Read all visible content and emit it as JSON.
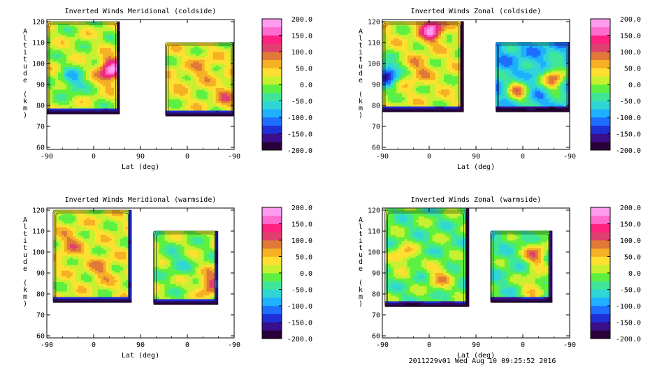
{
  "footer": "2011229v01 Wed Aug 10 09:25:52 2016",
  "colors": {
    "colorbar": [
      "#2a003a",
      "#3a0f8a",
      "#1f2fd6",
      "#1f6fff",
      "#1fb0ff",
      "#30d6d6",
      "#3fe69a",
      "#5ef040",
      "#c6f030",
      "#ffe030",
      "#f6b024",
      "#e07838",
      "#e04070",
      "#ff2080",
      "#ff6cd0",
      "#ff9cf0"
    ]
  },
  "chart_data": [
    {
      "type": "contour",
      "title": "Inverted Winds Meridional (coldside)",
      "xlabel": "Lat (deg)",
      "ylabel": "Altitude (km)",
      "xticklabels": [
        "-90",
        "0",
        "90",
        "0",
        "-90"
      ],
      "yticks": [
        60,
        70,
        80,
        90,
        100,
        110,
        120
      ],
      "ylim": [
        59,
        121
      ],
      "colorbar": {
        "min": -200,
        "max": 200,
        "ticks": [
          "200.0",
          "150.0",
          "100.0",
          "50.0",
          "0.0",
          "-50.0",
          "-100.0",
          "-150.0",
          "-200.0"
        ]
      },
      "data_regions": [
        {
          "x0": -90,
          "x1": 48,
          "ybot": 76,
          "ytop": 120,
          "base": 10
        },
        {
          "x0": 138,
          "x1": 270,
          "ybot": 75,
          "ytop": 110,
          "base": 20
        }
      ],
      "features": [
        {
          "x": 32,
          "y": 97,
          "value": 190
        },
        {
          "x": -40,
          "y": 92,
          "value": -80
        },
        {
          "x": 210,
          "y": 98,
          "value": 70
        },
        {
          "x": 255,
          "y": 85,
          "value": 80
        },
        {
          "x": 165,
          "y": 92,
          "value": 40
        }
      ]
    },
    {
      "type": "contour",
      "title": "Inverted Winds Zonal (coldside)",
      "xlabel": "Lat (deg)",
      "ylabel": "Altitude (km)",
      "xticklabels": [
        "-90",
        "0",
        "90",
        "0",
        "-90"
      ],
      "yticks": [
        60,
        70,
        80,
        90,
        100,
        110,
        120
      ],
      "ylim": [
        59,
        121
      ],
      "colorbar": {
        "min": -200,
        "max": 200,
        "ticks": [
          "200.0",
          "150.0",
          "100.0",
          "50.0",
          "0.0",
          "-50.0",
          "-100.0",
          "-150.0",
          "-200.0"
        ]
      },
      "data_regions": [
        {
          "x0": -90,
          "x1": 62,
          "ybot": 77,
          "ytop": 120,
          "base": 20
        },
        {
          "x0": 128,
          "x1": 270,
          "ybot": 77,
          "ytop": 110,
          "base": -80
        }
      ],
      "features": [
        {
          "x": 5,
          "y": 117,
          "value": 180
        },
        {
          "x": -80,
          "y": 95,
          "value": -160
        },
        {
          "x": -20,
          "y": 97,
          "value": 70
        },
        {
          "x": 240,
          "y": 93,
          "value": 90
        },
        {
          "x": 170,
          "y": 87,
          "value": 60
        }
      ]
    },
    {
      "type": "contour",
      "title": "Inverted Winds Meridional (warmside)",
      "xlabel": "Lat (deg)",
      "ylabel": "Altitude (km)",
      "xticklabels": [
        "-90",
        "0",
        "90",
        "0",
        "-90"
      ],
      "yticks": [
        60,
        70,
        80,
        90,
        100,
        110,
        120
      ],
      "ylim": [
        59,
        121
      ],
      "colorbar": {
        "min": -200,
        "max": 200,
        "ticks": [
          "200.0",
          "150.0",
          "100.0",
          "50.0",
          "0.0",
          "-50.0",
          "-100.0",
          "-150.0",
          "-200.0"
        ]
      },
      "data_regions": [
        {
          "x0": -78,
          "x1": 72,
          "ybot": 76,
          "ytop": 120,
          "base": 20
        },
        {
          "x0": 115,
          "x1": 238,
          "ybot": 75,
          "ytop": 110,
          "base": 0
        }
      ],
      "features": [
        {
          "x": -45,
          "y": 104,
          "value": 80
        },
        {
          "x": 15,
          "y": 92,
          "value": 70
        },
        {
          "x": 225,
          "y": 85,
          "value": 120
        },
        {
          "x": 160,
          "y": 95,
          "value": -40
        }
      ]
    },
    {
      "type": "contour",
      "title": "Inverted Winds Zonal (warmside)",
      "xlabel": "Lat (deg)",
      "ylabel": "Altitude (km)",
      "xticklabels": [
        "-90",
        "0",
        "90",
        "0",
        "-90"
      ],
      "yticks": [
        60,
        70,
        80,
        90,
        100,
        110,
        120
      ],
      "ylim": [
        59,
        121
      ],
      "colorbar": {
        "min": -200,
        "max": 200,
        "ticks": [
          "200.0",
          "150.0",
          "100.0",
          "50.0",
          "0.0",
          "-50.0",
          "-100.0",
          "-150.0",
          "-200.0"
        ]
      },
      "data_regions": [
        {
          "x0": -85,
          "x1": 72,
          "ybot": 74,
          "ytop": 120,
          "base": -20
        },
        {
          "x0": 118,
          "x1": 235,
          "ybot": 76,
          "ytop": 110,
          "base": -30
        }
      ],
      "features": [
        {
          "x": -50,
          "y": 98,
          "value": 60
        },
        {
          "x": 20,
          "y": 88,
          "value": 60
        },
        {
          "x": 205,
          "y": 99,
          "value": 90
        },
        {
          "x": 200,
          "y": 84,
          "value": 50
        }
      ]
    }
  ]
}
